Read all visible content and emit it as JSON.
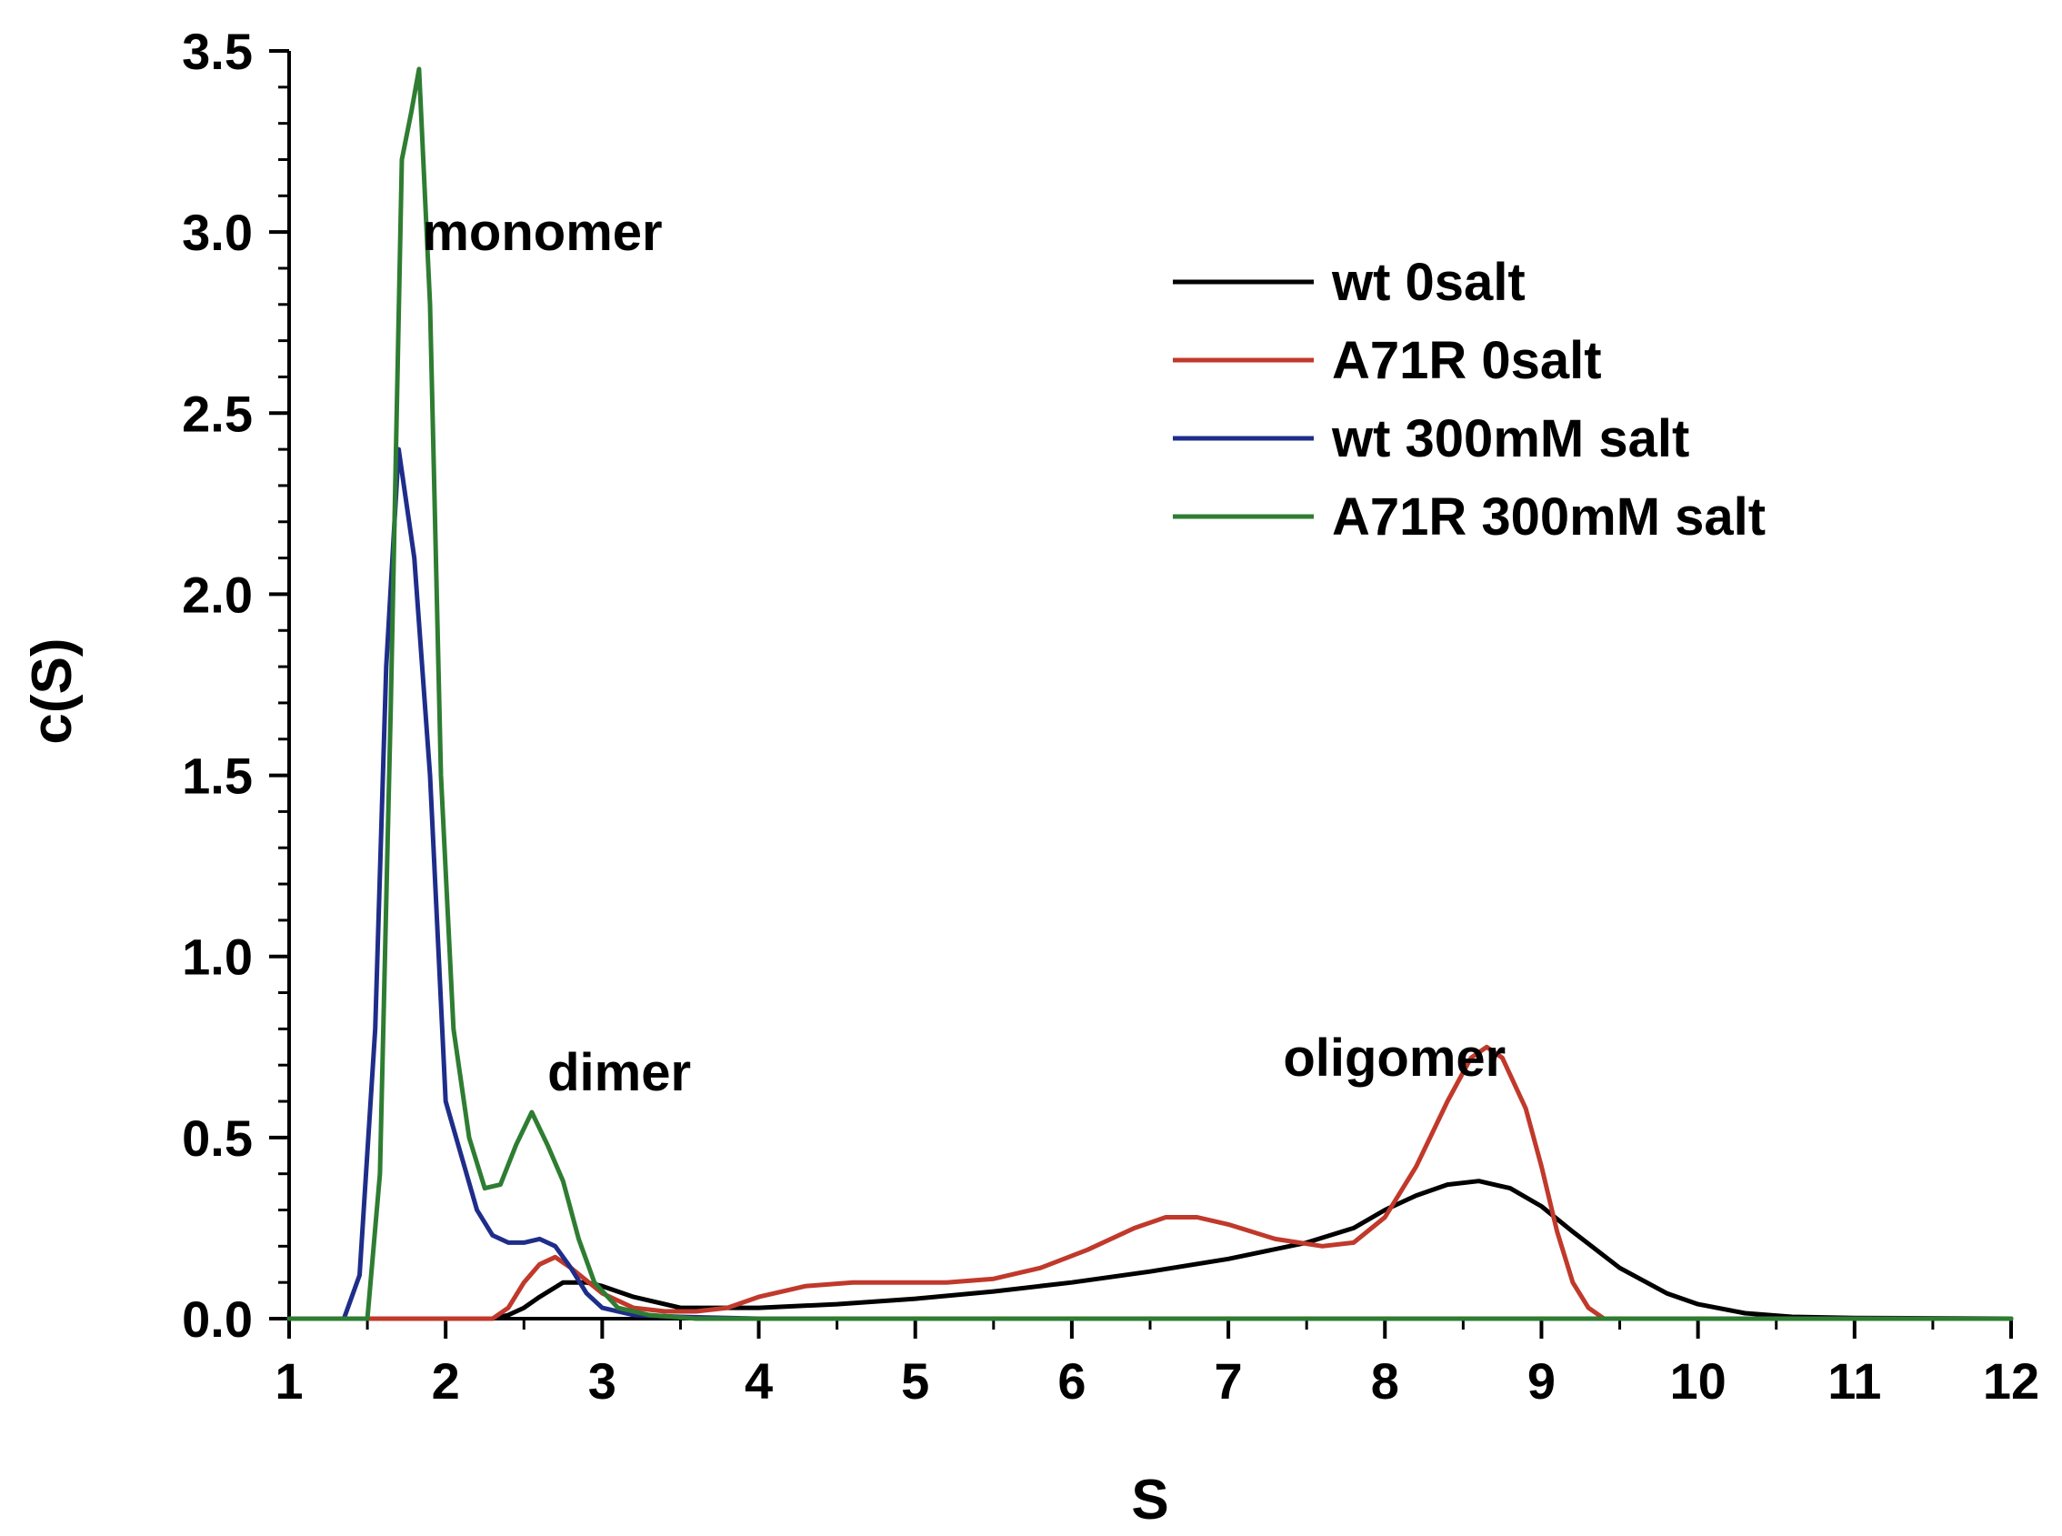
{
  "chart_data": {
    "type": "line",
    "title": "",
    "xlabel": "S",
    "ylabel": "c(S)",
    "xlim": [
      1,
      12
    ],
    "ylim": [
      0,
      3.5
    ],
    "x_ticks": [
      "1",
      "2",
      "3",
      "4",
      "5",
      "6",
      "7",
      "8",
      "9",
      "10",
      "11",
      "12"
    ],
    "y_ticks": [
      "0.0",
      "0.5",
      "1.0",
      "1.5",
      "2.0",
      "2.5",
      "3.0",
      "3.5"
    ],
    "grid": false,
    "legend_position": "top-right",
    "annotations": [
      {
        "text": "monomer",
        "x": 1.85,
        "y": 3.0
      },
      {
        "text": "dimer",
        "x": 2.65,
        "y": 0.68
      },
      {
        "text": "oligomer",
        "x": 7.35,
        "y": 0.72
      }
    ],
    "series": [
      {
        "name": "wt 0salt",
        "color": "#000000",
        "points": [
          [
            1,
            0
          ],
          [
            2.3,
            0
          ],
          [
            2.4,
            0.01
          ],
          [
            2.5,
            0.03
          ],
          [
            2.6,
            0.06
          ],
          [
            2.75,
            0.1
          ],
          [
            2.9,
            0.1
          ],
          [
            3.0,
            0.09
          ],
          [
            3.2,
            0.06
          ],
          [
            3.5,
            0.03
          ],
          [
            3.8,
            0.03
          ],
          [
            4.0,
            0.03
          ],
          [
            4.5,
            0.04
          ],
          [
            5.0,
            0.055
          ],
          [
            5.5,
            0.075
          ],
          [
            6.0,
            0.1
          ],
          [
            6.5,
            0.13
          ],
          [
            7.0,
            0.165
          ],
          [
            7.5,
            0.21
          ],
          [
            7.8,
            0.25
          ],
          [
            8.0,
            0.3
          ],
          [
            8.2,
            0.34
          ],
          [
            8.4,
            0.37
          ],
          [
            8.6,
            0.38
          ],
          [
            8.8,
            0.36
          ],
          [
            9.0,
            0.31
          ],
          [
            9.2,
            0.24
          ],
          [
            9.5,
            0.14
          ],
          [
            9.8,
            0.07
          ],
          [
            10.0,
            0.04
          ],
          [
            10.3,
            0.015
          ],
          [
            10.6,
            0.005
          ],
          [
            11.0,
            0.002
          ],
          [
            12.0,
            0.0
          ]
        ]
      },
      {
        "name": "A71R 0salt",
        "color": "#c0392b",
        "points": [
          [
            1,
            0
          ],
          [
            2.3,
            0
          ],
          [
            2.4,
            0.03
          ],
          [
            2.5,
            0.1
          ],
          [
            2.6,
            0.15
          ],
          [
            2.7,
            0.17
          ],
          [
            2.8,
            0.14
          ],
          [
            3.0,
            0.07
          ],
          [
            3.2,
            0.03
          ],
          [
            3.4,
            0.02
          ],
          [
            3.6,
            0.02
          ],
          [
            3.8,
            0.03
          ],
          [
            4.0,
            0.06
          ],
          [
            4.3,
            0.09
          ],
          [
            4.6,
            0.1
          ],
          [
            5.0,
            0.1
          ],
          [
            5.2,
            0.1
          ],
          [
            5.5,
            0.11
          ],
          [
            5.8,
            0.14
          ],
          [
            6.1,
            0.19
          ],
          [
            6.4,
            0.25
          ],
          [
            6.6,
            0.28
          ],
          [
            6.8,
            0.28
          ],
          [
            7.0,
            0.26
          ],
          [
            7.3,
            0.22
          ],
          [
            7.6,
            0.2
          ],
          [
            7.8,
            0.21
          ],
          [
            8.0,
            0.28
          ],
          [
            8.2,
            0.42
          ],
          [
            8.4,
            0.6
          ],
          [
            8.55,
            0.72
          ],
          [
            8.65,
            0.75
          ],
          [
            8.75,
            0.72
          ],
          [
            8.9,
            0.58
          ],
          [
            9.0,
            0.42
          ],
          [
            9.1,
            0.24
          ],
          [
            9.2,
            0.1
          ],
          [
            9.3,
            0.03
          ],
          [
            9.4,
            0.0
          ],
          [
            12.0,
            0.0
          ]
        ]
      },
      {
        "name": "wt 300mM salt",
        "color": "#1f2d8a",
        "points": [
          [
            1,
            0
          ],
          [
            1.35,
            0
          ],
          [
            1.45,
            0.12
          ],
          [
            1.55,
            0.8
          ],
          [
            1.62,
            1.8
          ],
          [
            1.7,
            2.4
          ],
          [
            1.8,
            2.1
          ],
          [
            1.9,
            1.5
          ],
          [
            2.0,
            0.6
          ],
          [
            2.1,
            0.45
          ],
          [
            2.2,
            0.3
          ],
          [
            2.3,
            0.23
          ],
          [
            2.4,
            0.21
          ],
          [
            2.5,
            0.21
          ],
          [
            2.6,
            0.22
          ],
          [
            2.7,
            0.2
          ],
          [
            2.8,
            0.14
          ],
          [
            2.9,
            0.07
          ],
          [
            3.0,
            0.03
          ],
          [
            3.2,
            0.01
          ],
          [
            3.5,
            0.005
          ],
          [
            4.0,
            0.0
          ],
          [
            12.0,
            0.0
          ]
        ]
      },
      {
        "name": "A71R 300mM salt",
        "color": "#2e7d32",
        "points": [
          [
            1,
            0
          ],
          [
            1.5,
            0
          ],
          [
            1.58,
            0.4
          ],
          [
            1.65,
            1.7
          ],
          [
            1.72,
            3.2
          ],
          [
            1.78,
            3.33
          ],
          [
            1.83,
            3.45
          ],
          [
            1.9,
            2.8
          ],
          [
            1.97,
            1.5
          ],
          [
            2.05,
            0.8
          ],
          [
            2.15,
            0.5
          ],
          [
            2.25,
            0.36
          ],
          [
            2.35,
            0.37
          ],
          [
            2.45,
            0.48
          ],
          [
            2.55,
            0.57
          ],
          [
            2.65,
            0.48
          ],
          [
            2.75,
            0.38
          ],
          [
            2.85,
            0.22
          ],
          [
            2.95,
            0.1
          ],
          [
            3.1,
            0.03
          ],
          [
            3.3,
            0.01
          ],
          [
            3.6,
            0.0
          ],
          [
            12.0,
            0.0
          ]
        ]
      }
    ]
  }
}
